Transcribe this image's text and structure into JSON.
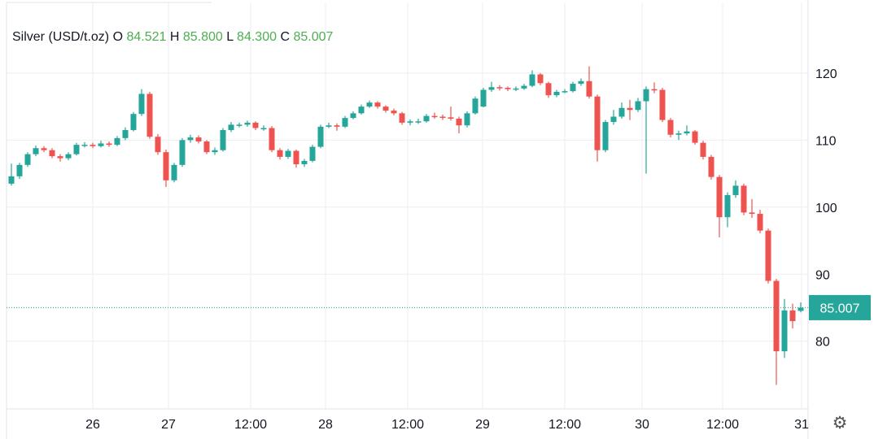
{
  "legend": {
    "symbol": "Silver (USD/t.oz)",
    "o_label": "O",
    "o": "84.521",
    "h_label": "H",
    "h": "85.800",
    "l_label": "L",
    "l": "84.300",
    "c_label": "C",
    "c": "85.007"
  },
  "colors": {
    "up": "#26a69a",
    "down": "#ef5350",
    "legend_value": "#4caf50",
    "last_price_badge": "#26a69a"
  },
  "settings_icon": "gear-icon",
  "chart_data": {
    "type": "candlestick",
    "title": "Silver (USD/t.oz)",
    "ylim": [
      69.9,
      130.9
    ],
    "y_ticks": [
      80,
      90,
      100,
      110,
      120
    ],
    "grid": true,
    "last_price": "85.007",
    "x_ticks": [
      {
        "label": "26",
        "at": 10
      },
      {
        "label": "27",
        "at": 19.3
      },
      {
        "label": "12:00",
        "at": 29.4
      },
      {
        "label": "28",
        "at": 38.6
      },
      {
        "label": "12:00",
        "at": 48.7
      },
      {
        "label": "29",
        "at": 57.9
      },
      {
        "label": "12:00",
        "at": 68
      },
      {
        "label": "30",
        "at": 77.5
      },
      {
        "label": "12:00",
        "at": 87.4
      },
      {
        "label": "31",
        "at": 97.1
      }
    ],
    "ohlc": [
      [
        103.5,
        106.5,
        103.2,
        104.6
      ],
      [
        104.6,
        106.6,
        104.2,
        106.3
      ],
      [
        106.3,
        108.2,
        106.0,
        107.9
      ],
      [
        107.9,
        109.2,
        107.6,
        108.8
      ],
      [
        108.8,
        109.1,
        108.2,
        108.5
      ],
      [
        108.5,
        108.8,
        107.3,
        107.6
      ],
      [
        107.6,
        107.9,
        106.8,
        107.3
      ],
      [
        107.3,
        108.2,
        107.0,
        107.9
      ],
      [
        107.9,
        109.6,
        107.7,
        109.3
      ],
      [
        109.3,
        109.7,
        108.9,
        109.3
      ],
      [
        109.3,
        109.6,
        108.8,
        109.1
      ],
      [
        109.1,
        109.9,
        108.9,
        109.5
      ],
      [
        109.5,
        109.8,
        109.0,
        109.3
      ],
      [
        109.3,
        110.6,
        109.1,
        110.3
      ],
      [
        110.3,
        111.9,
        110.0,
        111.5
      ],
      [
        111.5,
        114.2,
        111.3,
        113.9
      ],
      [
        113.9,
        117.6,
        113.6,
        116.9
      ],
      [
        116.9,
        117.2,
        110.2,
        110.5
      ],
      [
        110.5,
        110.9,
        107.8,
        108.2
      ],
      [
        108.2,
        108.6,
        103.0,
        104.0
      ],
      [
        104.0,
        106.6,
        103.7,
        106.3
      ],
      [
        106.3,
        110.3,
        106.0,
        110.0
      ],
      [
        110.0,
        110.8,
        109.6,
        110.4
      ],
      [
        110.4,
        110.7,
        109.5,
        109.8
      ],
      [
        109.8,
        110.0,
        107.9,
        108.2
      ],
      [
        108.2,
        108.9,
        107.8,
        108.5
      ],
      [
        108.5,
        111.8,
        108.3,
        111.5
      ],
      [
        111.5,
        112.7,
        111.2,
        112.3
      ],
      [
        112.3,
        112.6,
        111.9,
        112.3
      ],
      [
        112.3,
        112.9,
        112.0,
        112.6
      ],
      [
        112.6,
        112.8,
        111.5,
        111.8
      ],
      [
        111.8,
        112.2,
        111.4,
        111.8
      ],
      [
        111.8,
        112.1,
        108.2,
        108.5
      ],
      [
        108.5,
        108.8,
        107.1,
        107.5
      ],
      [
        107.5,
        108.7,
        107.2,
        108.4
      ],
      [
        108.4,
        108.6,
        105.9,
        106.4
      ],
      [
        106.4,
        107.2,
        106.0,
        106.9
      ],
      [
        106.9,
        109.3,
        106.7,
        109.0
      ],
      [
        109.0,
        112.3,
        108.8,
        112.0
      ],
      [
        112.0,
        112.6,
        111.8,
        112.2
      ],
      [
        112.2,
        112.5,
        111.4,
        112.0
      ],
      [
        112.0,
        113.6,
        111.8,
        113.3
      ],
      [
        113.3,
        114.3,
        113.1,
        114.0
      ],
      [
        114.0,
        115.3,
        113.8,
        115.0
      ],
      [
        115.0,
        115.9,
        114.8,
        115.6
      ],
      [
        115.6,
        115.8,
        114.7,
        115.0
      ],
      [
        115.0,
        115.2,
        114.1,
        114.4
      ],
      [
        114.4,
        114.7,
        113.7,
        114.0
      ],
      [
        114.0,
        114.2,
        112.3,
        112.6
      ],
      [
        112.6,
        113.1,
        112.2,
        112.8
      ],
      [
        112.8,
        113.2,
        112.4,
        112.8
      ],
      [
        112.8,
        113.9,
        112.6,
        113.6
      ],
      [
        113.6,
        114.1,
        113.2,
        113.5
      ],
      [
        113.5,
        113.8,
        113.0,
        113.4
      ],
      [
        113.4,
        115.0,
        112.9,
        113.2
      ],
      [
        113.2,
        113.5,
        111.0,
        112.2
      ],
      [
        112.2,
        114.3,
        111.9,
        114.0
      ],
      [
        114.0,
        116.5,
        113.8,
        116.2
      ],
      [
        115.0,
        117.8,
        114.9,
        117.5
      ],
      [
        117.5,
        118.7,
        117.2,
        117.9
      ],
      [
        117.9,
        118.2,
        117.4,
        117.8
      ],
      [
        117.8,
        118.0,
        117.3,
        117.6
      ],
      [
        117.6,
        118.0,
        117.3,
        117.7
      ],
      [
        117.7,
        118.4,
        117.5,
        118.1
      ],
      [
        118.1,
        120.4,
        117.9,
        119.8
      ],
      [
        119.8,
        120.0,
        118.2,
        118.5
      ],
      [
        118.5,
        118.7,
        116.3,
        116.7
      ],
      [
        116.7,
        117.5,
        116.4,
        117.2
      ],
      [
        117.2,
        117.6,
        117.0,
        117.3
      ],
      [
        117.3,
        118.7,
        117.1,
        118.4
      ],
      [
        118.4,
        119.2,
        118.1,
        118.8
      ],
      [
        118.8,
        121.0,
        116.2,
        116.5
      ],
      [
        116.5,
        116.8,
        106.8,
        108.5
      ],
      [
        108.5,
        113.0,
        108.2,
        112.7
      ],
      [
        112.7,
        114.5,
        112.3,
        113.5
      ],
      [
        113.5,
        115.6,
        113.2,
        114.8
      ],
      [
        114.8,
        116.0,
        113.0,
        114.5
      ],
      [
        114.5,
        116.3,
        114.2,
        115.8
      ],
      [
        115.8,
        118.0,
        105.0,
        117.6
      ],
      [
        117.6,
        118.6,
        117.0,
        117.5
      ],
      [
        117.5,
        117.8,
        112.7,
        113.0
      ],
      [
        113.0,
        113.3,
        110.4,
        110.8
      ],
      [
        110.8,
        111.4,
        110.0,
        111.0
      ],
      [
        111.0,
        112.2,
        110.7,
        111.3
      ],
      [
        111.3,
        111.5,
        109.3,
        109.6
      ],
      [
        109.6,
        109.9,
        107.1,
        107.5
      ],
      [
        107.5,
        107.8,
        104.1,
        104.5
      ],
      [
        104.5,
        104.8,
        95.5,
        98.5
      ],
      [
        98.5,
        102.2,
        97.0,
        101.8
      ],
      [
        101.8,
        104.0,
        101.4,
        103.2
      ],
      [
        103.2,
        103.5,
        98.8,
        99.2
      ],
      [
        99.2,
        101.2,
        98.4,
        99.0
      ],
      [
        99.0,
        99.6,
        96.1,
        96.5
      ],
      [
        96.5,
        96.8,
        88.6,
        89.0
      ],
      [
        89.0,
        89.3,
        73.5,
        78.5
      ],
      [
        78.5,
        86.3,
        77.5,
        84.6
      ],
      [
        84.6,
        85.6,
        81.9,
        83.0
      ],
      [
        84.521,
        85.8,
        84.3,
        85.007
      ]
    ]
  }
}
